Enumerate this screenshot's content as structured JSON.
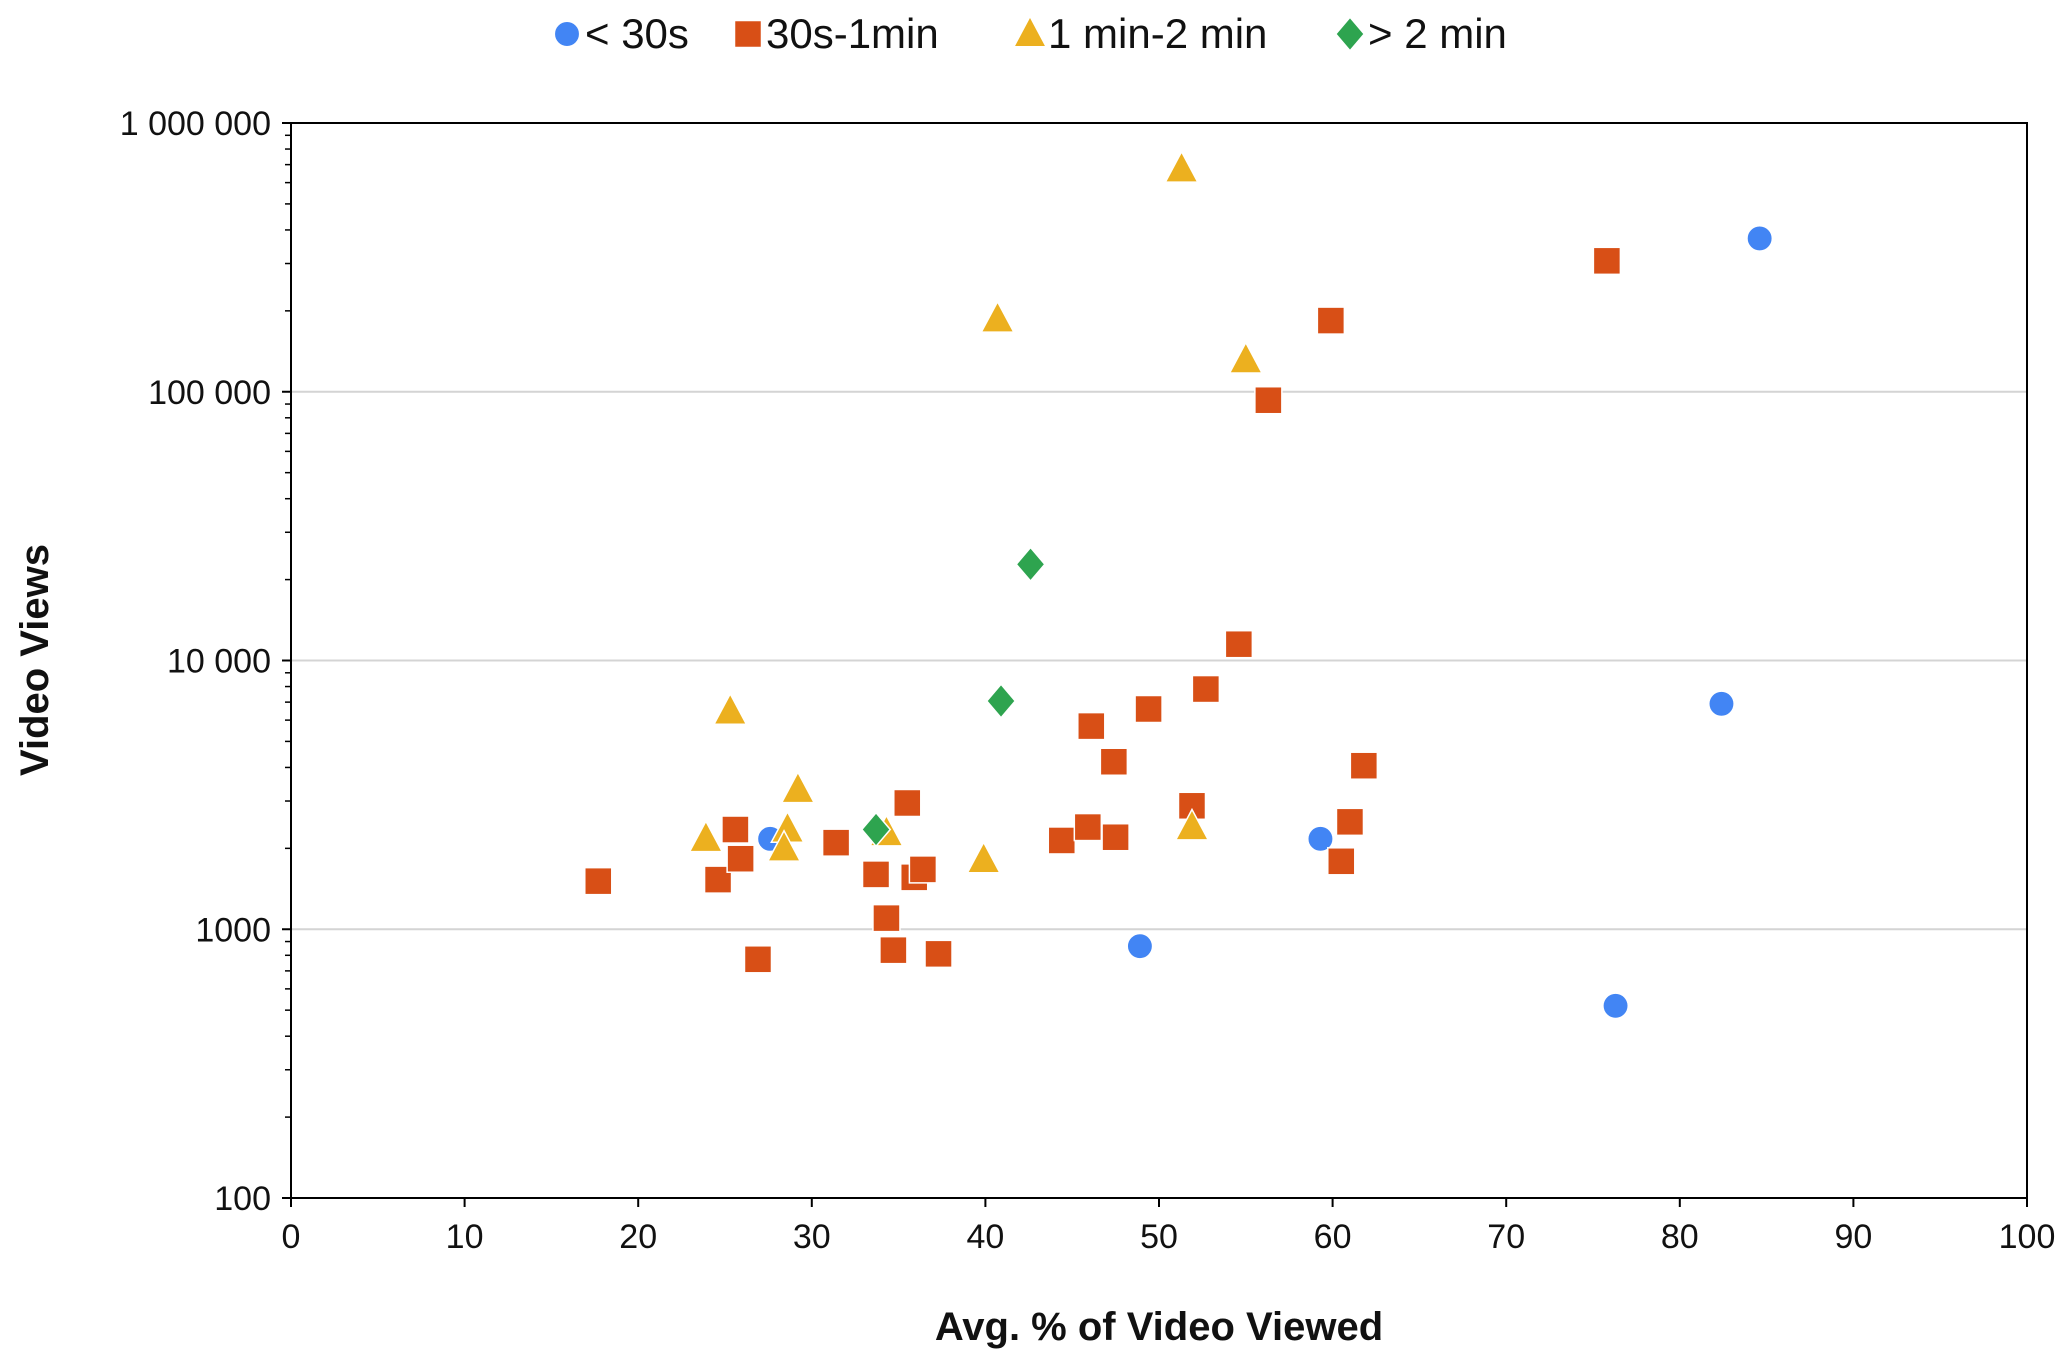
{
  "chart_data": {
    "type": "scatter",
    "title": "",
    "xlabel": "Avg. % of Video Viewed",
    "ylabel": "Video Views",
    "xlim": [
      0,
      100
    ],
    "ylim": [
      100,
      1000000
    ],
    "yscale": "log",
    "grid": "horizontal major",
    "legend_position": "top-center",
    "x_ticks": [
      "0",
      "10",
      "20",
      "30",
      "40",
      "50",
      "60",
      "70",
      "80",
      "90",
      "100"
    ],
    "y_ticks": [
      {
        "value": 1000000,
        "label": "1 000 000"
      },
      {
        "value": 100000,
        "label": "100 000"
      },
      {
        "value": 10000,
        "label": "10 000"
      },
      {
        "value": 1000,
        "label": "1000"
      },
      {
        "value": 100,
        "label": "100"
      }
    ],
    "series": [
      {
        "name": "< 30s",
        "marker": "circle",
        "color": "#4285F4",
        "points": [
          [
            27.6,
            2170
          ],
          [
            48.9,
            865
          ],
          [
            59.3,
            2170
          ],
          [
            76.3,
            519
          ],
          [
            82.4,
            6900
          ],
          [
            84.6,
            372000
          ]
        ]
      },
      {
        "name": "30s-1min",
        "marker": "square",
        "color": "#D84F16",
        "points": [
          [
            17.7,
            1510
          ],
          [
            24.6,
            1530
          ],
          [
            25.6,
            2350
          ],
          [
            25.9,
            1830
          ],
          [
            26.9,
            773
          ],
          [
            31.4,
            2100
          ],
          [
            33.7,
            1600
          ],
          [
            34.3,
            1100
          ],
          [
            34.7,
            836
          ],
          [
            35.5,
            2950
          ],
          [
            35.9,
            1560
          ],
          [
            36.4,
            1670
          ],
          [
            37.3,
            810
          ],
          [
            44.4,
            2140
          ],
          [
            45.9,
            2400
          ],
          [
            46.1,
            5700
          ],
          [
            47.5,
            2200
          ],
          [
            47.4,
            4200
          ],
          [
            49.4,
            6600
          ],
          [
            51.9,
            2880
          ],
          [
            52.7,
            7830
          ],
          [
            54.6,
            11500
          ],
          [
            56.3,
            93000
          ],
          [
            59.9,
            184000
          ],
          [
            60.5,
            1790
          ],
          [
            61.0,
            2510
          ],
          [
            61.8,
            4060
          ],
          [
            75.8,
            307000
          ]
        ]
      },
      {
        "name": "1 min-2 min",
        "marker": "triangle",
        "color": "#ECB01F",
        "points": [
          [
            23.9,
            2170
          ],
          [
            25.3,
            6460
          ],
          [
            28.6,
            2350
          ],
          [
            28.4,
            2000
          ],
          [
            29.2,
            3300
          ],
          [
            34.3,
            2280
          ],
          [
            39.9,
            1810
          ],
          [
            40.7,
            186000
          ],
          [
            51.3,
            672000
          ],
          [
            51.9,
            2400
          ],
          [
            55.0,
            131000
          ]
        ]
      },
      {
        "name": "> 2 min",
        "marker": "diamond",
        "color": "#2EA44F",
        "points": [
          [
            33.7,
            2350
          ],
          [
            40.9,
            7070
          ],
          [
            42.6,
            22800
          ]
        ]
      }
    ]
  }
}
